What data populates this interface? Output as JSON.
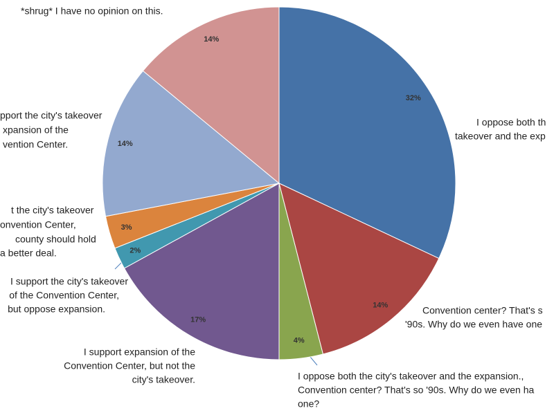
{
  "chart_data": {
    "type": "pie",
    "categories": [
      [
        "I oppose both th",
        "takeover and the exp"
      ],
      [
        "Convention center? That's s",
        "'90s. Why do we even have one"
      ],
      [
        "I oppose both the city's takeover and the expansion.,",
        "Convention center? That's so '90s. Why do we even ha",
        "one?"
      ],
      [
        "I support expansion of the",
        "Convention Center, but not the",
        "city's takeover."
      ],
      [
        "I support the city's takeover",
        "of the Convention Center,",
        "but oppose expansion."
      ],
      [
        "t the city's takeover",
        "onvention Center,",
        "county should hold",
        "a better deal."
      ],
      [
        "pport the city's takeover",
        "xpansion of the",
        "vention Center."
      ],
      [
        "*shrug* I have no opinion on this."
      ]
    ],
    "values": [
      32,
      14,
      4,
      17,
      2,
      3,
      14,
      14
    ],
    "value_labels": [
      "32%",
      "14%",
      "4%",
      "17%",
      "2%",
      "3%",
      "14%",
      "14%"
    ],
    "colors": [
      "#4572a7",
      "#aa4643",
      "#89a54e",
      "#71588f",
      "#4198af",
      "#db843d",
      "#93a9cf",
      "#d19392"
    ]
  }
}
